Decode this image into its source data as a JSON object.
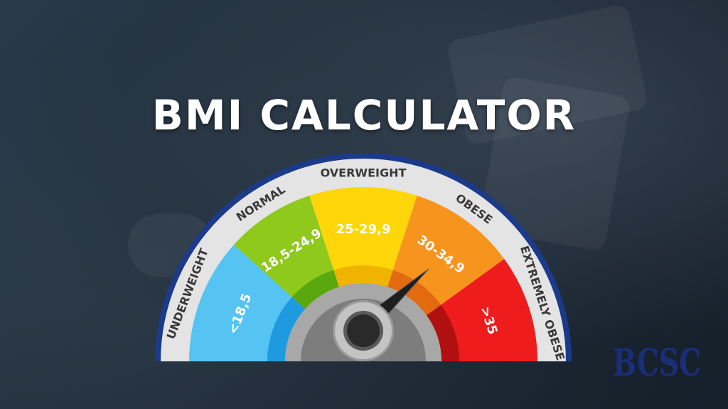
{
  "title": "BMI CALCULATOR",
  "gauge": {
    "categories": [
      {
        "label": "UNDERWEIGHT",
        "range": "<18,5"
      },
      {
        "label": "NORMAL",
        "range": "18,5-24,9"
      },
      {
        "label": "OVERWEIGHT",
        "range": "25-29,9"
      },
      {
        "label": "OBESE",
        "range": "30-34,9"
      },
      {
        "label": "EXTREMELY OBESE",
        "range": ">35"
      }
    ],
    "colors": {
      "underweight": "#56c4f2",
      "normal": "#8ec91b",
      "overweight": "#ffd60a",
      "obese": "#f7941d",
      "extremely_obese": "#ee1c1c",
      "frame": "#1b3a8a",
      "band": "#e4e4e4"
    }
  },
  "logo": {
    "text": "BCSC"
  }
}
